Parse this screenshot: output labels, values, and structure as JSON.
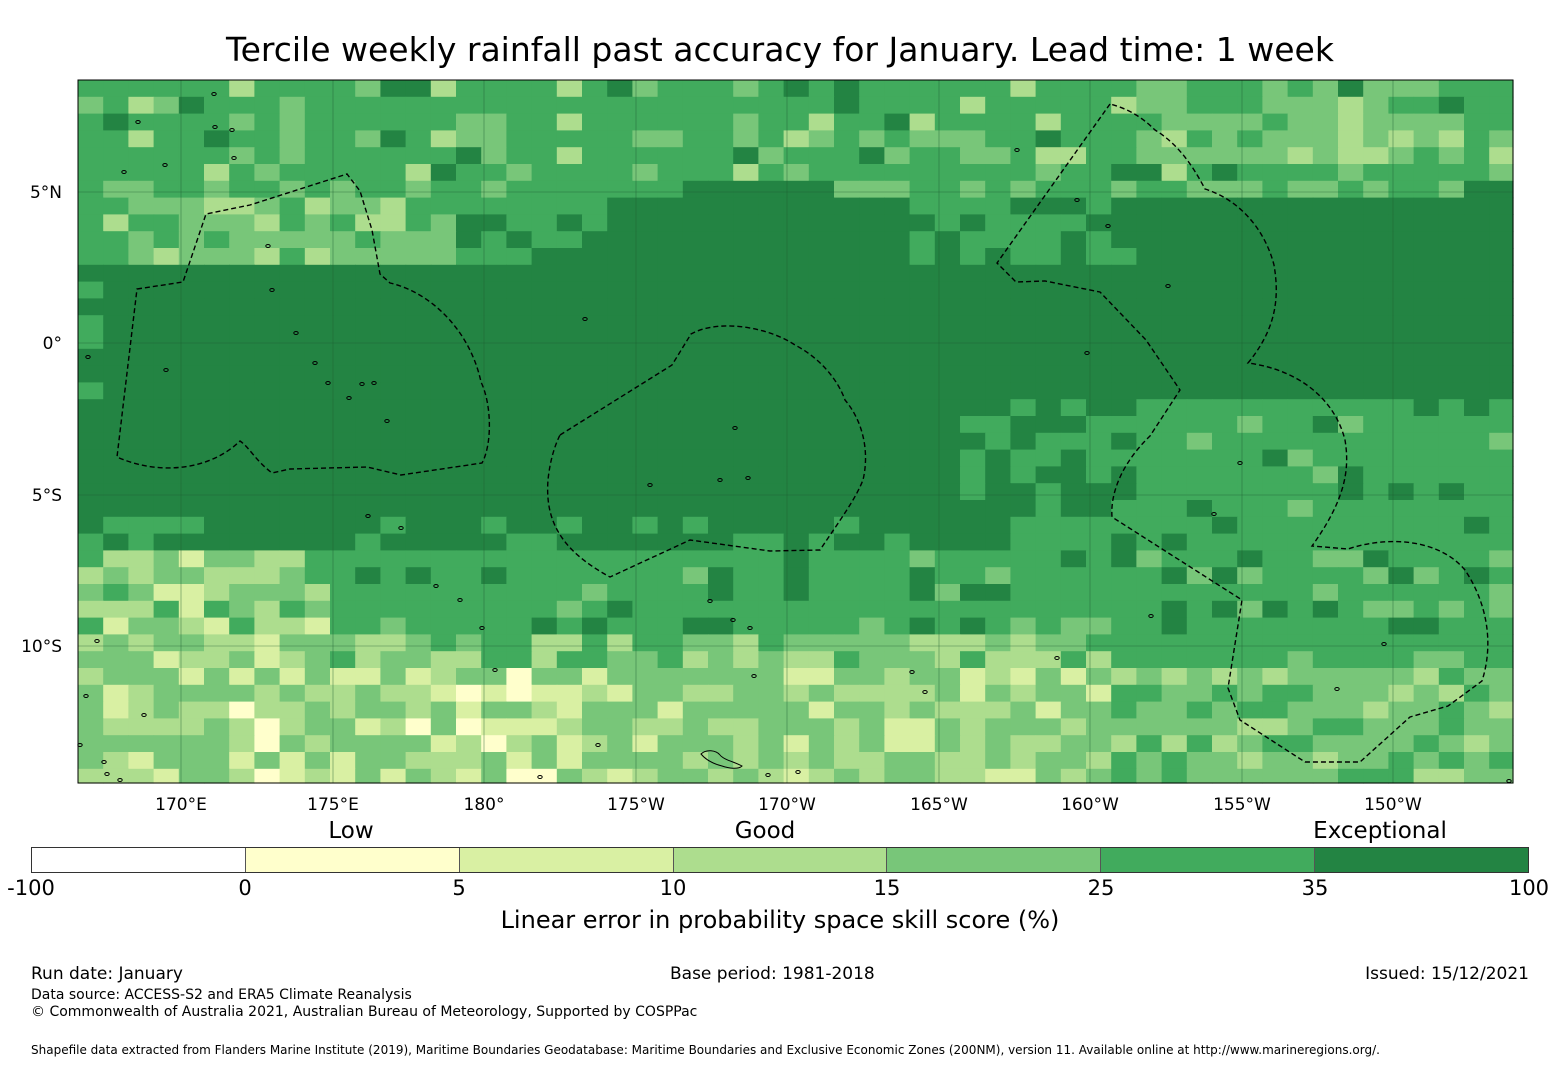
{
  "title": "Tercile weekly rainfall past accuracy for January. Lead time: 1 week",
  "chart_data": {
    "type": "heatmap",
    "title": "Tercile weekly rainfall past accuracy for January. Lead time: 1 week",
    "xlabel": "",
    "ylabel": "",
    "longitude_ticks": [
      "170°E",
      "175°E",
      "180°",
      "175°W",
      "170°W",
      "165°W",
      "160°W",
      "155°W",
      "150°W"
    ],
    "latitude_ticks": [
      "5°N",
      "0°",
      "5°S",
      "10°S"
    ],
    "lon_range": [
      166.6,
      213.9
    ],
    "lat_range": [
      -14.5,
      8.7
    ],
    "grid": true,
    "colorbar": {
      "label": "Linear error in probability space skill score (%)",
      "categories": [
        "Low",
        "Good",
        "Exceptional"
      ],
      "boundaries": [
        "-100",
        "0",
        "5",
        "10",
        "15",
        "25",
        "35",
        "100"
      ],
      "colors": [
        "#ffffff",
        "#ffffcc",
        "#d9f0a3",
        "#addd8e",
        "#78c679",
        "#41ab5d",
        "#238443"
      ]
    },
    "bands": [
      {
        "lat_from": 8.7,
        "lat_to": 5.0,
        "value_class": "25-35"
      },
      {
        "lat_from": 5.0,
        "lat_to": 4.0,
        "value_class": "mixed 15-35"
      },
      {
        "lat_from": 4.0,
        "lat_to": -5.5,
        "value_class": "35-100"
      },
      {
        "lat_from": -5.5,
        "lat_to": -10.0,
        "value_class": "25-35"
      },
      {
        "lat_from": -10.0,
        "lat_to": -14.5,
        "value_class": "mixed 0-25"
      }
    ]
  },
  "colors": {
    "c_neg": "#ffffff",
    "c0": "#ffffcc",
    "c5": "#d9f0a3",
    "c10": "#addd8e",
    "c15": "#78c679",
    "c25": "#41ab5d",
    "c35": "#238443"
  },
  "footer": {
    "run_date": "Run date: January",
    "base_period": "Base period: 1981-2018",
    "issued": "Issued: 15/12/2021",
    "data_source": "Data source: ACCESS-S2 and ERA5 Climate Reanalysis",
    "copyright": "© Commonwealth of Australia 2021, Australian Bureau of Meteorology, Supported by COSPPac",
    "shapefile": "Shapefile data extracted from Flanders Marine Institute (2019), Maritime Boundaries Geodatabase: Maritime Boundaries and Exclusive Economic Zones (200NM), version 11. Available online at http://www.marineregions.org/."
  }
}
